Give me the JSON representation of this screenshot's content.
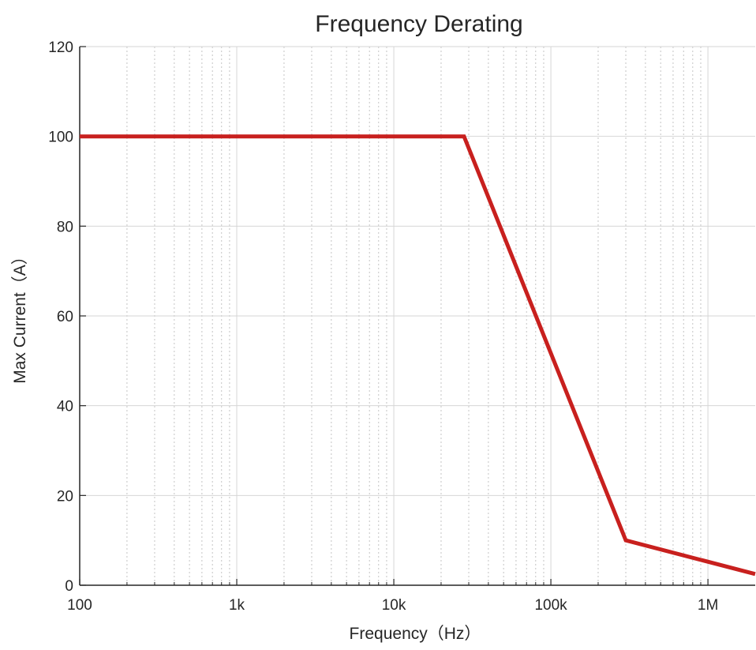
{
  "chart_data": {
    "type": "line",
    "title": "Frequency Derating",
    "xlabel": "Frequency（Hz）",
    "ylabel": "Max Current（A）",
    "x_scale": "log",
    "xlim": [
      100,
      2000000
    ],
    "ylim": [
      0,
      120
    ],
    "x_ticks": [
      {
        "value": 100,
        "label": "100"
      },
      {
        "value": 1000,
        "label": "1k"
      },
      {
        "value": 10000,
        "label": "10k"
      },
      {
        "value": 100000,
        "label": "100k"
      },
      {
        "value": 1000000,
        "label": "1M"
      }
    ],
    "y_ticks": [
      {
        "value": 0,
        "label": "0"
      },
      {
        "value": 20,
        "label": "20"
      },
      {
        "value": 40,
        "label": "40"
      },
      {
        "value": 60,
        "label": "60"
      },
      {
        "value": 80,
        "label": "80"
      },
      {
        "value": 100,
        "label": "100"
      },
      {
        "value": 120,
        "label": "120"
      }
    ],
    "grid": true,
    "minor_grid": true,
    "series": [
      {
        "color": "#c8201e",
        "points": [
          {
            "x": 100,
            "y": 100
          },
          {
            "x": 28000,
            "y": 100
          },
          {
            "x": 300000,
            "y": 10
          },
          {
            "x": 2000000,
            "y": 2.5
          }
        ]
      }
    ]
  }
}
